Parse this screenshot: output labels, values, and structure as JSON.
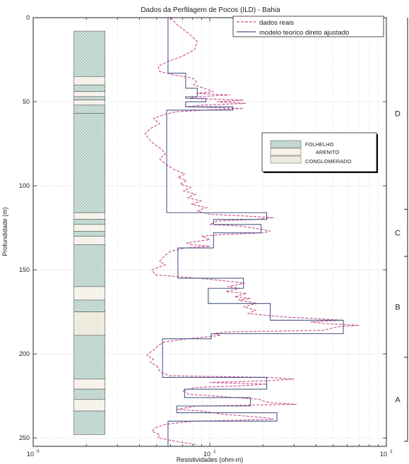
{
  "chart_data": {
    "type": "line",
    "title": "Dados da Perfilagem de Pocos (ILD) - Bahia",
    "xlabel": "Resistividades (ohm-m)",
    "ylabel": "Profundidade (m)",
    "x_scale": "log",
    "xlim": [
      1,
      100
    ],
    "ylim": [
      0,
      255
    ],
    "y_inverted": true,
    "grid": "vertical-log-and-horizontal-major",
    "x_ticks": [
      {
        "value": 1,
        "base": "10",
        "exp": "0"
      },
      {
        "value": 10,
        "base": "10",
        "exp": "1"
      },
      {
        "value": 100,
        "base": "10",
        "exp": "2"
      }
    ],
    "y_ticks": [
      0,
      50,
      100,
      150,
      200,
      250
    ],
    "legend": {
      "placement": "top-right",
      "entries": [
        {
          "label": "dados reais",
          "color": "#c8508a",
          "style": "dashed"
        },
        {
          "label": "modelo teorico direto ajustado",
          "color": "#4a5a8a",
          "style": "solid"
        }
      ]
    },
    "series": [
      {
        "name": "modelo teorico direto ajustado",
        "color": "#4a5a8a",
        "style": "solid",
        "points": [
          [
            5.8,
            0
          ],
          [
            5.8,
            33
          ],
          [
            7.3,
            33
          ],
          [
            7.3,
            42
          ],
          [
            8.5,
            42
          ],
          [
            8.5,
            47
          ],
          [
            7.3,
            47
          ],
          [
            7.3,
            48
          ],
          [
            9.5,
            48
          ],
          [
            9.5,
            50
          ],
          [
            7.3,
            50
          ],
          [
            7.3,
            53
          ],
          [
            13.5,
            53
          ],
          [
            13.5,
            55
          ],
          [
            5.7,
            55
          ],
          [
            5.7,
            116
          ],
          [
            21,
            116
          ],
          [
            21,
            120
          ],
          [
            10.5,
            120
          ],
          [
            10.5,
            123
          ],
          [
            19.5,
            123
          ],
          [
            19.5,
            128
          ],
          [
            10.5,
            128
          ],
          [
            10.5,
            137
          ],
          [
            6.6,
            137
          ],
          [
            6.6,
            155
          ],
          [
            15.5,
            155
          ],
          [
            15.5,
            161
          ],
          [
            9.8,
            161
          ],
          [
            9.8,
            170
          ],
          [
            22,
            170
          ],
          [
            22,
            180
          ],
          [
            57,
            180
          ],
          [
            57,
            188
          ],
          [
            10.2,
            188
          ],
          [
            10.2,
            191
          ],
          [
            5.4,
            191
          ],
          [
            5.4,
            214
          ],
          [
            21,
            214
          ],
          [
            21,
            221
          ],
          [
            7.2,
            221
          ],
          [
            7.2,
            226
          ],
          [
            17,
            226
          ],
          [
            17,
            231
          ],
          [
            6.5,
            231
          ],
          [
            6.5,
            235
          ],
          [
            24,
            235
          ],
          [
            24,
            240
          ],
          [
            5.8,
            240
          ],
          [
            5.8,
            255
          ]
        ]
      },
      {
        "name": "dados reais",
        "color": "#c8508a",
        "style": "dashed",
        "points": [
          [
            6,
            0
          ],
          [
            6.5,
            4
          ],
          [
            7.5,
            9
          ],
          [
            8.5,
            14
          ],
          [
            8.2,
            19
          ],
          [
            7,
            23
          ],
          [
            5.8,
            26
          ],
          [
            5.1,
            29
          ],
          [
            5.2,
            32
          ],
          [
            6.2,
            34
          ],
          [
            8,
            36
          ],
          [
            8.4,
            38
          ],
          [
            8.1,
            40
          ],
          [
            9.3,
            42
          ],
          [
            10.5,
            44
          ],
          [
            8.4,
            45
          ],
          [
            13,
            46
          ],
          [
            8.5,
            47
          ],
          [
            7.6,
            48
          ],
          [
            15.5,
            49
          ],
          [
            11,
            50
          ],
          [
            16,
            51
          ],
          [
            9,
            52
          ],
          [
            7.3,
            53
          ],
          [
            15.5,
            54
          ],
          [
            9.5,
            55
          ],
          [
            6.4,
            56
          ],
          [
            5.4,
            58
          ],
          [
            4.8,
            60
          ],
          [
            5.2,
            63
          ],
          [
            4.6,
            66
          ],
          [
            4.3,
            69
          ],
          [
            4.5,
            72
          ],
          [
            4.8,
            75
          ],
          [
            5.3,
            78
          ],
          [
            5.6,
            81
          ],
          [
            5.2,
            84
          ],
          [
            5.6,
            87
          ],
          [
            6.2,
            90
          ],
          [
            7.2,
            93
          ],
          [
            6.6,
            95
          ],
          [
            7.4,
            97
          ],
          [
            6.8,
            99
          ],
          [
            7.8,
            101
          ],
          [
            7.1,
            103
          ],
          [
            8.3,
            105
          ],
          [
            7.5,
            107
          ],
          [
            8.9,
            109
          ],
          [
            7.9,
            111
          ],
          [
            9.6,
            113
          ],
          [
            8.5,
            115
          ],
          [
            10,
            117
          ],
          [
            16,
            118
          ],
          [
            23,
            119
          ],
          [
            18,
            120
          ],
          [
            11,
            121
          ],
          [
            10,
            123
          ],
          [
            15,
            124
          ],
          [
            20,
            126
          ],
          [
            22,
            127
          ],
          [
            20,
            128
          ],
          [
            12,
            129
          ],
          [
            9,
            130
          ],
          [
            10,
            132
          ],
          [
            7.4,
            134
          ],
          [
            7.8,
            135
          ],
          [
            10,
            136
          ],
          [
            7.2,
            137
          ],
          [
            6,
            139
          ],
          [
            5.5,
            142
          ],
          [
            5.2,
            145
          ],
          [
            5.6,
            147
          ],
          [
            4.7,
            150
          ],
          [
            4.9,
            153
          ],
          [
            8.6,
            155
          ],
          [
            10.8,
            156
          ],
          [
            13.2,
            157
          ],
          [
            15.8,
            158
          ],
          [
            12.6,
            160
          ],
          [
            14.8,
            161
          ],
          [
            12.3,
            163
          ],
          [
            16.2,
            164
          ],
          [
            13.8,
            166
          ],
          [
            17,
            167
          ],
          [
            14.5,
            168
          ],
          [
            18.6,
            170
          ],
          [
            15.5,
            172
          ],
          [
            18.2,
            174
          ],
          [
            16.5,
            176
          ],
          [
            26,
            178
          ],
          [
            40,
            179
          ],
          [
            56,
            180
          ],
          [
            37,
            181
          ],
          [
            45,
            182
          ],
          [
            70,
            183
          ],
          [
            52,
            184
          ],
          [
            44,
            186
          ],
          [
            12,
            187
          ],
          [
            10.5,
            188
          ],
          [
            11.5,
            189
          ],
          [
            7.5,
            191
          ],
          [
            5.5,
            193
          ],
          [
            5.1,
            195
          ],
          [
            4.9,
            197
          ],
          [
            4.6,
            199
          ],
          [
            4.4,
            201
          ],
          [
            4.8,
            203
          ],
          [
            4.6,
            205
          ],
          [
            5,
            207
          ],
          [
            5.1,
            209
          ],
          [
            5.3,
            211
          ],
          [
            5.9,
            213
          ],
          [
            22,
            214
          ],
          [
            30,
            215
          ],
          [
            21,
            216
          ],
          [
            10,
            217
          ],
          [
            21,
            218
          ],
          [
            15,
            219
          ],
          [
            8.2,
            220
          ],
          [
            7,
            222
          ],
          [
            7.6,
            224
          ],
          [
            10.5,
            225
          ],
          [
            14,
            226
          ],
          [
            19,
            227
          ],
          [
            20,
            228
          ],
          [
            22,
            229
          ],
          [
            31,
            230
          ],
          [
            8.5,
            231
          ],
          [
            7.4,
            232
          ],
          [
            6.5,
            233
          ],
          [
            9,
            234
          ],
          [
            12,
            236
          ],
          [
            16,
            237
          ],
          [
            21,
            238
          ],
          [
            23,
            239
          ],
          [
            8.2,
            240
          ],
          [
            6.6,
            241
          ],
          [
            5.6,
            242
          ],
          [
            4.9,
            244
          ],
          [
            4.7,
            246
          ],
          [
            5.2,
            248
          ],
          [
            5.1,
            250
          ],
          [
            6.4,
            252
          ],
          [
            8.5,
            254
          ]
        ]
      }
    ],
    "lithology": {
      "legend": [
        {
          "label": "FOLHELHO",
          "pattern": "folhelho"
        },
        {
          "label": "ARENITO",
          "pattern": "arenito"
        },
        {
          "label": "CONGLOMERADO",
          "pattern": "conglomerado"
        }
      ],
      "column_x_range": [
        1.7,
        2.55
      ],
      "layers": [
        {
          "top": 8,
          "bottom": 35,
          "type": "folhelho"
        },
        {
          "top": 35,
          "bottom": 40,
          "type": "arenito"
        },
        {
          "top": 40,
          "bottom": 44,
          "type": "folhelho"
        },
        {
          "top": 44,
          "bottom": 47,
          "type": "arenito"
        },
        {
          "top": 47,
          "bottom": 49,
          "type": "folhelho"
        },
        {
          "top": 49,
          "bottom": 52,
          "type": "arenito"
        },
        {
          "top": 52,
          "bottom": 57,
          "type": "folhelho"
        },
        {
          "top": 57,
          "bottom": 116,
          "type": "folhelho"
        },
        {
          "top": 116,
          "bottom": 120,
          "type": "arenito"
        },
        {
          "top": 120,
          "bottom": 123,
          "type": "folhelho"
        },
        {
          "top": 123,
          "bottom": 127,
          "type": "arenito"
        },
        {
          "top": 127,
          "bottom": 130,
          "type": "folhelho"
        },
        {
          "top": 130,
          "bottom": 135,
          "type": "arenito"
        },
        {
          "top": 135,
          "bottom": 160,
          "type": "folhelho"
        },
        {
          "top": 160,
          "bottom": 168,
          "type": "arenito"
        },
        {
          "top": 168,
          "bottom": 175,
          "type": "folhelho"
        },
        {
          "top": 175,
          "bottom": 189,
          "type": "conglomerado"
        },
        {
          "top": 189,
          "bottom": 215,
          "type": "folhelho"
        },
        {
          "top": 215,
          "bottom": 221,
          "type": "arenito"
        },
        {
          "top": 221,
          "bottom": 227,
          "type": "folhelho"
        },
        {
          "top": 227,
          "bottom": 234,
          "type": "arenito"
        },
        {
          "top": 234,
          "bottom": 248,
          "type": "folhelho"
        }
      ]
    },
    "zones": [
      {
        "label": "D",
        "top": 0,
        "bottom": 114
      },
      {
        "label": "C",
        "top": 114,
        "bottom": 142
      },
      {
        "label": "B",
        "top": 142,
        "bottom": 202
      },
      {
        "label": "A",
        "top": 202,
        "bottom": 252
      }
    ]
  }
}
